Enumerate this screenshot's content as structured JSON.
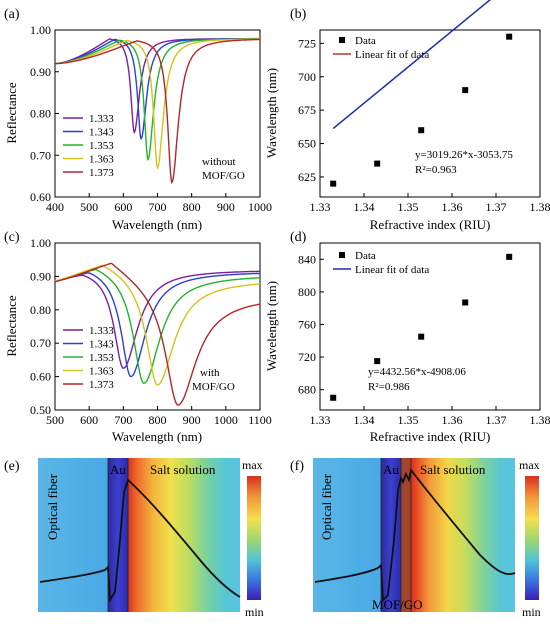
{
  "chart_data": [
    {
      "panel": "(a)",
      "type": "line",
      "xlabel": "Wavelength (nm)",
      "ylabel": "Reflectance",
      "xlim": [
        400,
        1000
      ],
      "ylim": [
        0.6,
        1.0
      ],
      "xticks": [
        "400",
        "500",
        "600",
        "700",
        "800",
        "900",
        "1000"
      ],
      "yticks": [
        "0.60",
        "0.70",
        "0.80",
        "0.90",
        "1.00"
      ],
      "annotation": [
        "without",
        "MOF/GO"
      ],
      "legend_position": "lower-left",
      "series": [
        {
          "name": "1.333",
          "color": "#7a1fa2",
          "dip_x": 632,
          "dip_y": 0.755,
          "base_left": 0.92,
          "peak_x": 560,
          "peak_y": 0.985,
          "base_right": 0.98,
          "width": 22
        },
        {
          "name": "1.343",
          "color": "#2a3fd6",
          "dip_x": 652,
          "dip_y": 0.74,
          "base_left": 0.92,
          "peak_x": 575,
          "peak_y": 0.984,
          "base_right": 0.98,
          "width": 23
        },
        {
          "name": "1.353",
          "color": "#20b52b",
          "dip_x": 672,
          "dip_y": 0.69,
          "base_left": 0.92,
          "peak_x": 590,
          "peak_y": 0.983,
          "base_right": 0.98,
          "width": 24
        },
        {
          "name": "1.363",
          "color": "#d8c21a",
          "dip_x": 700,
          "dip_y": 0.67,
          "base_left": 0.92,
          "peak_x": 610,
          "peak_y": 0.982,
          "base_right": 0.98,
          "width": 25
        },
        {
          "name": "1.373",
          "color": "#b3262a",
          "dip_x": 742,
          "dip_y": 0.635,
          "base_left": 0.92,
          "peak_x": 640,
          "peak_y": 0.981,
          "base_right": 0.98,
          "width": 27
        }
      ]
    },
    {
      "panel": "(b)",
      "type": "scatter",
      "xlabel": "Refractive index (RIU)",
      "ylabel": "Wavelength (nm)",
      "xlim": [
        1.33,
        1.38
      ],
      "ylim": [
        610,
        735
      ],
      "xticks": [
        "1.33",
        "1.34",
        "1.35",
        "1.36",
        "1.37",
        "1.38"
      ],
      "yticks": [
        "625",
        "650",
        "675",
        "700",
        "725"
      ],
      "x": [
        1.333,
        1.343,
        1.353,
        1.363,
        1.373
      ],
      "y": [
        620,
        635,
        660,
        690,
        730
      ],
      "fit": {
        "slope": 3019.26,
        "intercept": -3053.75,
        "color": "#b2382c"
      },
      "legend": [
        "Data",
        "Linear fit of data"
      ],
      "legend_position": "top-left",
      "equation": "y=3019.26*x-3053.75",
      "r2": "R²=0.963"
    },
    {
      "panel": "(c)",
      "type": "line",
      "xlabel": "Wavelength (nm)",
      "ylabel": "Reflectance",
      "xlim": [
        500,
        1100
      ],
      "ylim": [
        0.5,
        1.0
      ],
      "xticks": [
        "500",
        "600",
        "700",
        "800",
        "900",
        "1000",
        "1100"
      ],
      "yticks": [
        "0.50",
        "0.60",
        "0.70",
        "0.80",
        "0.90",
        "1.00"
      ],
      "annotation": [
        "with",
        "MOF/GO"
      ],
      "legend_position": "lower-left",
      "series": [
        {
          "name": "1.333",
          "color": "#7a1fa2",
          "dip_x": 700,
          "dip_y": 0.625,
          "base_left": 0.87,
          "peak_x": 580,
          "peak_y": 0.925,
          "base_right": 0.92,
          "width": 60
        },
        {
          "name": "1.343",
          "color": "#2a3fd6",
          "dip_x": 722,
          "dip_y": 0.6,
          "base_left": 0.87,
          "peak_x": 600,
          "peak_y": 0.935,
          "base_right": 0.915,
          "width": 62
        },
        {
          "name": "1.353",
          "color": "#20b52b",
          "dip_x": 760,
          "dip_y": 0.58,
          "base_left": 0.87,
          "peak_x": 620,
          "peak_y": 0.945,
          "base_right": 0.905,
          "width": 68
        },
        {
          "name": "1.363",
          "color": "#d8c21a",
          "dip_x": 800,
          "dip_y": 0.575,
          "base_left": 0.87,
          "peak_x": 640,
          "peak_y": 0.955,
          "base_right": 0.89,
          "width": 72
        },
        {
          "name": "1.373",
          "color": "#b3262a",
          "dip_x": 860,
          "dip_y": 0.515,
          "base_left": 0.87,
          "peak_x": 665,
          "peak_y": 0.96,
          "base_right": 0.84,
          "width": 78
        }
      ]
    },
    {
      "panel": "(d)",
      "type": "scatter",
      "xlabel": "Refractive index (RIU)",
      "ylabel": "Wavelength (nm)",
      "xlim": [
        1.33,
        1.38
      ],
      "ylim": [
        655,
        860
      ],
      "xticks": [
        "1.33",
        "1.34",
        "1.35",
        "1.36",
        "1.37",
        "1.38"
      ],
      "yticks": [
        "680",
        "720",
        "760",
        "800",
        "840"
      ],
      "x": [
        1.333,
        1.343,
        1.353,
        1.363,
        1.373
      ],
      "y": [
        670,
        715,
        745,
        787,
        843
      ],
      "fit": {
        "slope": 4432.56,
        "intercept": -4908.06,
        "color": "#1f2fa8"
      },
      "legend": [
        "Data",
        "Linear fit of data"
      ],
      "legend_position": "top-left",
      "equation": "y=4432.56*x-4908.06",
      "r2": "R²=0.986"
    }
  ],
  "field_maps": [
    {
      "panel": "(e)",
      "fiber_label": "Optical fiber",
      "au_label": "Au",
      "solution_label": "Salt solution",
      "layer_label": "",
      "colorbar_max": "max",
      "colorbar_min": "min"
    },
    {
      "panel": "(f)",
      "fiber_label": "Optical fiber",
      "au_label": "Au",
      "solution_label": "Salt solution",
      "layer_label": "MOF/GO",
      "colorbar_max": "max",
      "colorbar_min": "min"
    }
  ]
}
